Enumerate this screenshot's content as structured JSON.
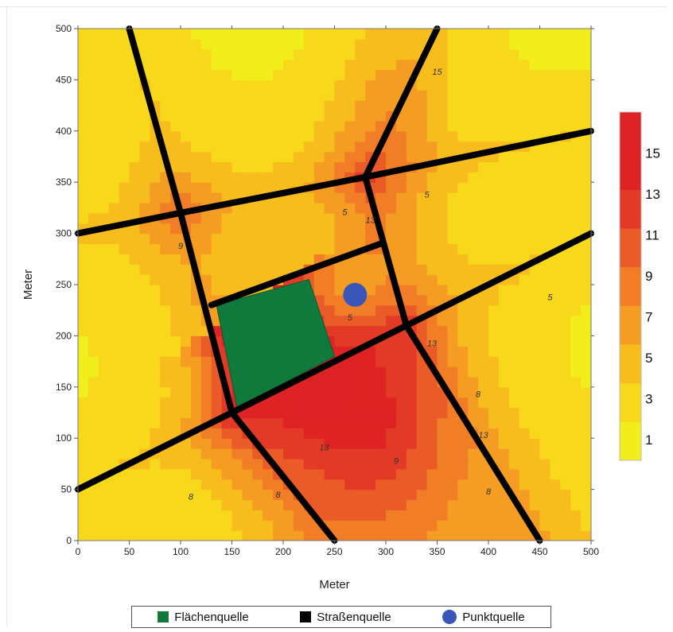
{
  "chart_data": {
    "type": "heatmap",
    "subtype": "contour",
    "xlabel": "Meter",
    "ylabel": "Meter",
    "xlim": [
      0,
      500
    ],
    "ylim": [
      0,
      500
    ],
    "x_ticks": [
      0,
      50,
      100,
      150,
      200,
      250,
      300,
      350,
      400,
      450,
      500
    ],
    "y_ticks": [
      0,
      50,
      100,
      150,
      200,
      250,
      300,
      350,
      400,
      450,
      500
    ],
    "colorbar": {
      "levels": [
        1,
        3,
        5,
        7,
        9,
        11,
        13,
        15
      ],
      "colors": [
        "#f2ee1c",
        "#f8d81a",
        "#f7bd1c",
        "#f49d22",
        "#f17d26",
        "#ea5b27",
        "#e23a26",
        "#df2325",
        "#dd2226"
      ],
      "labels": [
        "1",
        "3",
        "5",
        "7",
        "9",
        "11",
        "13",
        "15"
      ],
      "max": 17
    },
    "roads": [
      {
        "points": [
          [
            50,
            500
          ],
          [
            100,
            320
          ],
          [
            150,
            125
          ],
          [
            250,
            0
          ]
        ]
      },
      {
        "points": [
          [
            350,
            500
          ],
          [
            280,
            355
          ],
          [
            320,
            210
          ],
          [
            450,
            0
          ]
        ]
      },
      {
        "points": [
          [
            0,
            300
          ],
          [
            100,
            320
          ],
          [
            280,
            355
          ],
          [
            500,
            400
          ]
        ]
      },
      {
        "points": [
          [
            0,
            50
          ],
          [
            150,
            125
          ],
          [
            320,
            210
          ],
          [
            500,
            300
          ]
        ]
      },
      {
        "points": [
          [
            130,
            230
          ],
          [
            295,
            290
          ]
        ]
      }
    ],
    "area_source": {
      "polygon": [
        [
          135,
          230
        ],
        [
          225,
          255
        ],
        [
          250,
          180
        ],
        [
          155,
          130
        ]
      ]
    },
    "point_source": {
      "x": 270,
      "y": 240
    },
    "contour_labels": [
      {
        "x": 350,
        "y": 455,
        "text": "15"
      },
      {
        "x": 340,
        "y": 335,
        "text": "5"
      },
      {
        "x": 260,
        "y": 318,
        "text": "5"
      },
      {
        "x": 285,
        "y": 310,
        "text": "13"
      },
      {
        "x": 100,
        "y": 285,
        "text": "9"
      },
      {
        "x": 265,
        "y": 215,
        "text": "5"
      },
      {
        "x": 460,
        "y": 235,
        "text": "5"
      },
      {
        "x": 345,
        "y": 190,
        "text": "13"
      },
      {
        "x": 240,
        "y": 88,
        "text": "13"
      },
      {
        "x": 310,
        "y": 75,
        "text": "9"
      },
      {
        "x": 395,
        "y": 100,
        "text": "13"
      },
      {
        "x": 390,
        "y": 140,
        "text": "8"
      },
      {
        "x": 195,
        "y": 42,
        "text": "8"
      },
      {
        "x": 110,
        "y": 40,
        "text": "8"
      },
      {
        "x": 400,
        "y": 45,
        "text": "8"
      }
    ]
  },
  "legend": {
    "items": [
      {
        "label": "Flächenquelle",
        "color": "#0f7a3c",
        "shape": "square"
      },
      {
        "label": "Straßenquelle",
        "color": "#000000",
        "shape": "square"
      },
      {
        "label": "Punktquelle",
        "color": "#3a56b8",
        "shape": "circle"
      }
    ]
  }
}
